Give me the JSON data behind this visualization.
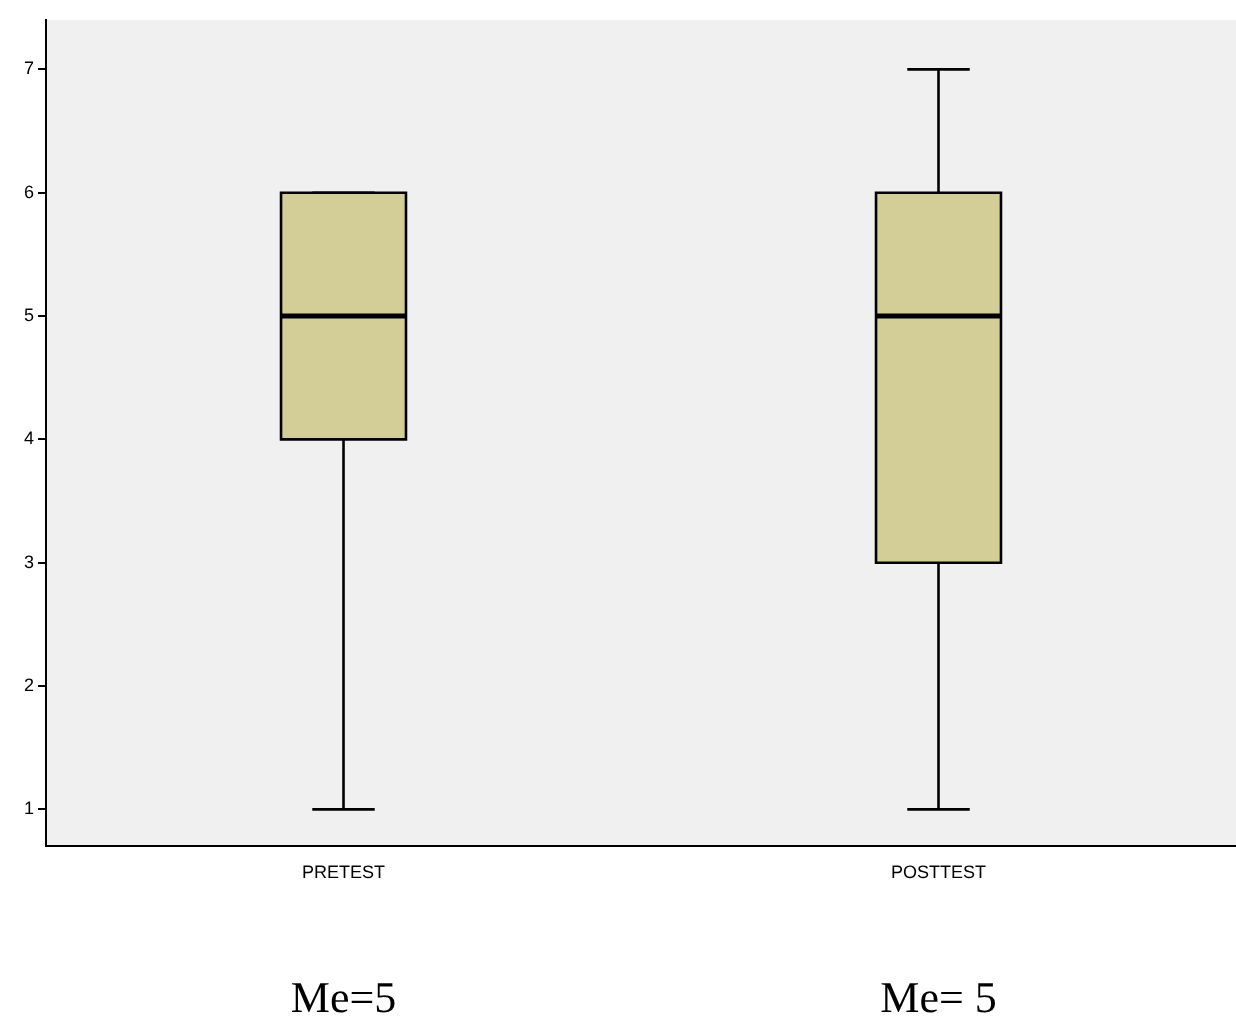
{
  "chart_data": {
    "type": "box",
    "categories": [
      "PRETEST",
      "POSTTEST"
    ],
    "boxes": [
      {
        "low": 1,
        "q1": 4,
        "median": 5,
        "q3": 6,
        "high": 6
      },
      {
        "low": 1,
        "q1": 3,
        "median": 5,
        "q3": 6,
        "high": 7
      }
    ],
    "color": "#d3ce97",
    "ylim": [
      0.7,
      7.4
    ],
    "yticks": [
      1,
      2,
      3,
      4,
      5,
      6,
      7
    ],
    "grid": false,
    "legend": false,
    "annotations": [
      "Me=5",
      "Me= 5"
    ]
  }
}
